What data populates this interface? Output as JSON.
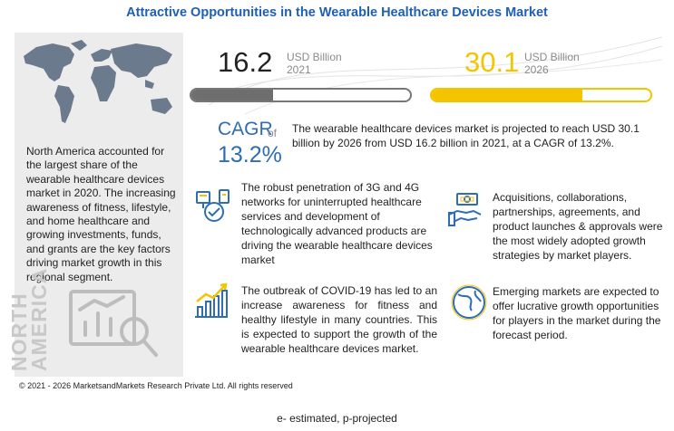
{
  "title": "Attractive Opportunities in the Wearable Healthcare Devices Market",
  "left_panel": {
    "text": "North America accounted for the largest share of the wearable healthcare devices market in 2020. The increasing awareness of fitness, lifestyle, and home healthcare and growing investments, funds, and grants are the key factors driving market growth in this regional segment.",
    "region_label_line1": "NORTH",
    "region_label_line2": "AMERICA"
  },
  "chart_data": {
    "type": "bar",
    "categories": [
      "2021",
      "2026"
    ],
    "values": [
      16.2,
      30.1
    ],
    "unit": "USD Billion",
    "value_labels": [
      "16.2",
      "30.1"
    ],
    "colors": [
      "#6e6e6e",
      "#f5c400"
    ],
    "bar_scale_max": 43.6
  },
  "cagr": {
    "label": "CAGR",
    "of": "of",
    "value": "13.2%",
    "text": "The wearable healthcare devices market is projected to reach USD 30.1 billion by 2026 from USD 16.2 billion in 2021, at a CAGR of 13.2%."
  },
  "bullets": [
    {
      "icon": "connectivity-icon",
      "text": "The robust penetration of 3G and 4G networks for uninterrupted healthcare services and development of technologically advanced products are driving the wearable healthcare devices market"
    },
    {
      "icon": "growth-chart-icon",
      "text": "The outbreak of COVID-19 has led to an increase awareness for fitness and healthy lifestyle in many countries. This is expected to support the growth of the wearable healthcare devices market."
    },
    {
      "icon": "handshake-icon",
      "text": "Acquisitions, collaborations, partnerships, agreements, and product launches & approvals were the most widely adopted growth strategies by market players."
    },
    {
      "icon": "globe-icon",
      "text": "Emerging markets are expected to offer lucrative growth opportunities for players in the market during the forecast period."
    }
  ],
  "copyright": "© 2021 - 2026 MarketsandMarkets Research Private Ltd. All rights reserved",
  "footnote": "e- estimated, p-projected",
  "colors": {
    "title": "#1f5fb4",
    "cagr": "#2e6db4",
    "accent": "#f5c400",
    "gray_bar": "#6e6e6e"
  }
}
